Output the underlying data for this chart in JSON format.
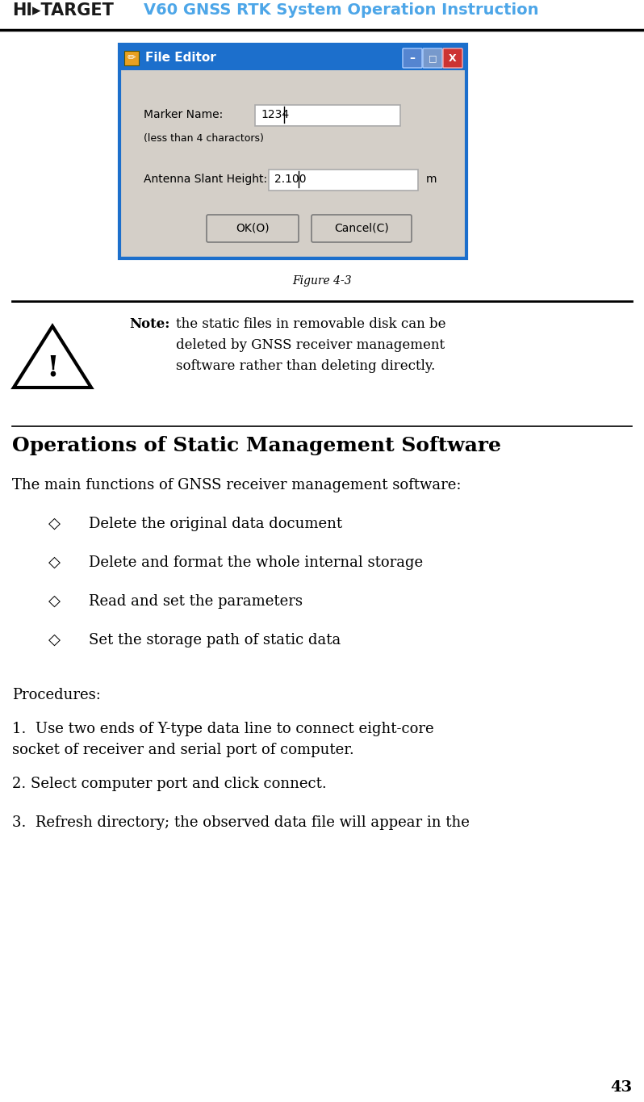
{
  "header_logo_text": "HI▸TARGET",
  "header_title": "V60 GNSS RTK System Operation Instruction",
  "header_logo_color": "#1a1a1a",
  "header_title_color": "#4da6e8",
  "header_line_color": "#000000",
  "bg_color": "#ffffff",
  "figure_caption": "Figure 4-3",
  "note_bold": "Note:",
  "note_text_line1": "the static files in removable disk can be",
  "note_text_line2": "deleted by GNSS receiver management",
  "note_text_line3": "software rather than deleting directly.",
  "section_title": "Operations of Static Management Software",
  "intro_text": "The main functions of GNSS receiver management software:",
  "bullet_items": [
    "Delete the original data document",
    "Delete and format the whole internal storage",
    "Read and set the parameters",
    "Set the storage path of static data"
  ],
  "procedures_label": "Procedures:",
  "step1_a": "1.  Use two ends of Y-type data line to connect eight-core",
  "step1_b": "socket of receiver and serial port of computer.",
  "step2": "2. Select computer port and click connect.",
  "step3": "3.  Refresh directory; the observed data file will appear in the",
  "page_number": "43",
  "separator_color": "#000000",
  "text_color": "#000000",
  "dialog_title_bar_color": "#1c6fcc",
  "dialog_bg_color": "#d4cfc8",
  "dialog_border_color": "#1c6fcc",
  "input_box_color": "#ffffff",
  "btn_bg_color": "#d4cfc8",
  "btn_border_color": "#7a7a7a",
  "minimize_color": "#5585d0",
  "maximize_color": "#7799cc",
  "close_color": "#cc3333"
}
